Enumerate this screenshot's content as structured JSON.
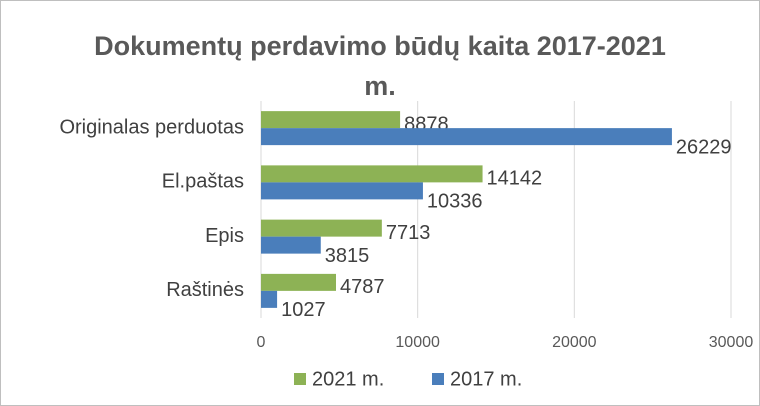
{
  "chart_data": {
    "type": "bar",
    "orientation": "horizontal",
    "title": "Dokumentų perdavimo būdų kaita 2017-2021 m.",
    "categories": [
      "Originalas perduotas",
      "El.paštas",
      "Epis",
      "Raštinės"
    ],
    "series": [
      {
        "name": "2021 m.",
        "color": "#8db255",
        "values": [
          8878,
          14142,
          7713,
          4787
        ]
      },
      {
        "name": "2017 m.",
        "color": "#4a7ebb",
        "values": [
          26229,
          10336,
          3815,
          1027
        ]
      }
    ],
    "xlim": [
      0,
      30000
    ],
    "xticks": [
      0,
      10000,
      20000,
      30000
    ],
    "grid": true,
    "legend": "bottom"
  }
}
